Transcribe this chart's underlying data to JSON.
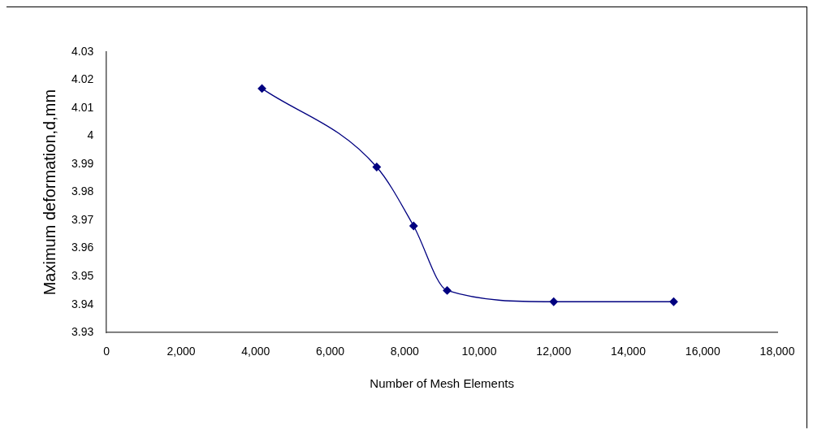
{
  "chart_data": {
    "type": "line",
    "xlabel": "Number of Mesh Elements",
    "ylabel": "Maximum deformation,d,mm",
    "x": [
      4170,
      7250,
      8240,
      9140,
      12000,
      15220
    ],
    "series": [
      {
        "color": "#000080",
        "values": [
          4.017,
          3.989,
          3.968,
          3.945,
          3.941,
          3.941
        ]
      }
    ],
    "xlim": [
      0,
      18000
    ],
    "xticks": [
      0,
      {
        "value": 2000,
        "label": "2,000"
      },
      {
        "value": 4000,
        "label": "4,000"
      },
      {
        "value": 6000,
        "label": "6,000"
      },
      {
        "value": 8000,
        "label": "8,000"
      },
      {
        "value": 10000,
        "label": "10,000"
      },
      {
        "value": 12000,
        "label": "12,000"
      },
      {
        "value": 14000,
        "label": "14,000"
      },
      {
        "value": 16000,
        "label": "16,000"
      },
      {
        "value": 18000,
        "label": "18,000"
      }
    ],
    "ylim": [
      3.93,
      4.03
    ],
    "yticks": [
      3.93,
      3.94,
      3.95,
      3.96,
      3.97,
      3.98,
      3.99,
      4,
      4.01,
      4.02,
      4.03
    ],
    "grid": false,
    "legend": false,
    "marker": "diamond",
    "line_style": "solid"
  }
}
